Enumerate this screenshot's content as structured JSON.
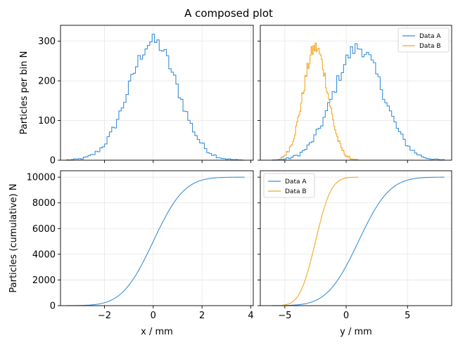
{
  "figure": {
    "title": "A composed plot"
  },
  "colors": {
    "data_a": "#3a8fd8",
    "data_b": "#f5a623",
    "grid": "#e6e6e6",
    "axes": "#000000"
  },
  "chart_data": [
    {
      "id": "top-left",
      "type": "histogram",
      "ylabel": "Particles per bin   N",
      "xlabel": "",
      "xlim": [
        -3.8,
        4.1
      ],
      "ylim": [
        0,
        340
      ],
      "xticks": [
        -2,
        0,
        2,
        4
      ],
      "yticks": [
        0,
        100,
        200,
        300
      ],
      "show_xtick_labels": false,
      "show_ytick_labels": true,
      "series": [
        {
          "name": "Data A",
          "mean": 0.0,
          "std": 1.0,
          "total": 10000,
          "range": [
            -3.55,
            3.75
          ],
          "peak": 322
        }
      ]
    },
    {
      "id": "top-right",
      "type": "histogram",
      "xlim": [
        -7.0,
        8.6
      ],
      "ylim": [
        0,
        340
      ],
      "xticks": [
        -5,
        0,
        5
      ],
      "yticks": [
        0,
        100,
        200,
        300
      ],
      "show_xtick_labels": false,
      "show_ytick_labels": false,
      "legend": {
        "position": "upper right",
        "entries": [
          "Data A",
          "Data B"
        ]
      },
      "series": [
        {
          "name": "Data A",
          "mean": 1.0,
          "std": 2.0,
          "total": 10000,
          "range": [
            -6.0,
            8.0
          ],
          "peak": 305
        },
        {
          "name": "Data B",
          "mean": -2.5,
          "std": 1.0,
          "total": 10000,
          "range": [
            -5.3,
            1.0
          ],
          "peak": 305
        }
      ]
    },
    {
      "id": "bottom-left",
      "type": "cumulative",
      "ylabel": "Particles (cumulative)   N",
      "xlabel": "x / mm",
      "xlim": [
        -3.8,
        4.1
      ],
      "ylim": [
        0,
        10500
      ],
      "xticks": [
        -2,
        0,
        2,
        4
      ],
      "yticks": [
        0,
        2000,
        4000,
        6000,
        8000,
        10000
      ],
      "show_xtick_labels": true,
      "show_ytick_labels": true,
      "series": [
        {
          "name": "Data A",
          "mean": 0.0,
          "std": 1.0,
          "total": 10000,
          "range": [
            -3.55,
            3.75
          ]
        }
      ]
    },
    {
      "id": "bottom-right",
      "type": "cumulative",
      "xlabel": "y / mm",
      "xlim": [
        -7.0,
        8.6
      ],
      "ylim": [
        0,
        10500
      ],
      "xticks": [
        -5,
        0,
        5
      ],
      "yticks": [
        0,
        2000,
        4000,
        6000,
        8000,
        10000
      ],
      "show_xtick_labels": true,
      "show_ytick_labels": false,
      "legend": {
        "position": "upper left",
        "entries": [
          "Data A",
          "Data B"
        ]
      },
      "series": [
        {
          "name": "Data A",
          "mean": 1.0,
          "std": 2.0,
          "total": 10000,
          "range": [
            -6.0,
            8.0
          ]
        },
        {
          "name": "Data B",
          "mean": -2.5,
          "std": 1.0,
          "total": 10000,
          "range": [
            -5.3,
            1.0
          ]
        }
      ]
    }
  ]
}
